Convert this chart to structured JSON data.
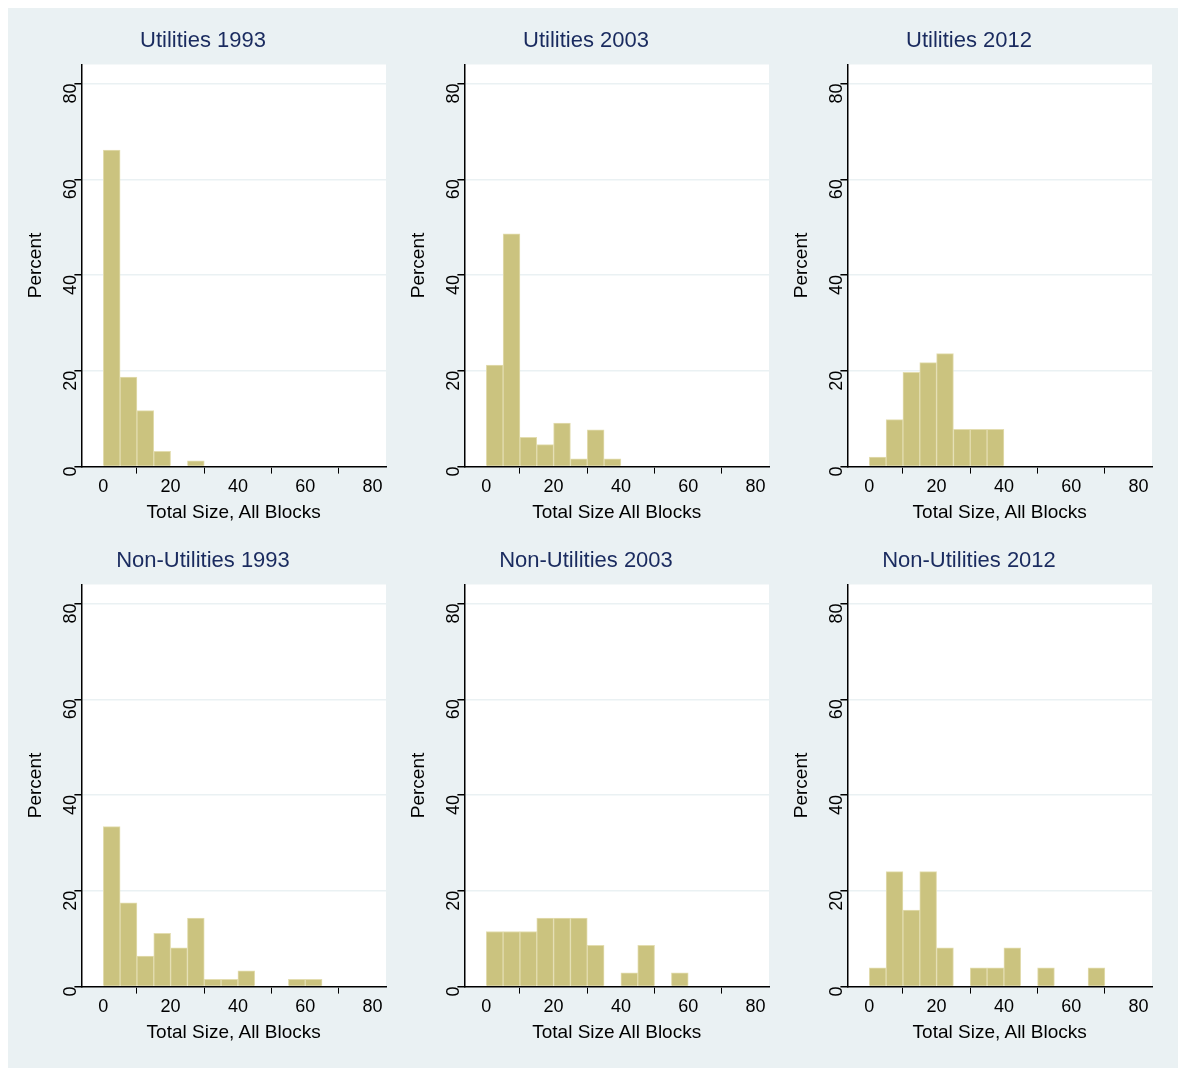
{
  "chart_data": [
    {
      "type": "histogram",
      "title": "Utilities 1993",
      "xlabel": "Total Size, All Blocks",
      "ylabel": "Percent",
      "color": "#cbc37f",
      "bins": [
        0,
        5,
        10,
        15,
        20,
        25,
        30
      ],
      "values": [
        66.1,
        18.7,
        11.7,
        3.2,
        0,
        1.2
      ],
      "xlim": [
        -6.5,
        84
      ],
      "xticks": [
        0,
        20,
        40,
        60,
        80
      ],
      "ylim": [
        0,
        84
      ],
      "yticks": [
        0,
        20,
        40,
        60,
        80
      ],
      "grid": "y"
    },
    {
      "type": "histogram",
      "title": "Utilities 2003",
      "xlabel": "Total Size All Blocks",
      "ylabel": "Percent",
      "color": "#cbc37f",
      "bins": [
        0,
        5,
        10,
        15,
        20,
        25,
        30,
        35,
        40
      ],
      "values": [
        21.2,
        48.6,
        6.1,
        4.6,
        9.1,
        1.6,
        7.7,
        1.6
      ],
      "xlim": [
        -6.5,
        84
      ],
      "xticks": [
        0,
        20,
        40,
        60,
        80
      ],
      "ylim": [
        0,
        84
      ],
      "yticks": [
        0,
        20,
        40,
        60,
        80
      ],
      "grid": "y"
    },
    {
      "type": "histogram",
      "title": "Utilities 2012",
      "xlabel": "Total Size, All Blocks",
      "ylabel": "Percent",
      "color": "#cbc37f",
      "bins": [
        0,
        5,
        10,
        15,
        20,
        25,
        30,
        35,
        40
      ],
      "values": [
        2.0,
        9.8,
        19.7,
        21.7,
        23.6,
        7.8,
        7.8,
        7.8
      ],
      "xlim": [
        -6.5,
        84
      ],
      "xticks": [
        0,
        20,
        40,
        60,
        80
      ],
      "ylim": [
        0,
        84
      ],
      "yticks": [
        0,
        20,
        40,
        60,
        80
      ],
      "grid": "y"
    },
    {
      "type": "histogram",
      "title": "Non-Utilities 1993",
      "xlabel": "Total Size, All Blocks",
      "ylabel": "Percent",
      "color": "#cbc37f",
      "bins": [
        0,
        5,
        10,
        15,
        20,
        25,
        30,
        35,
        40,
        45,
        50,
        55,
        60,
        65
      ],
      "values": [
        33.4,
        17.5,
        6.4,
        11.1,
        8.1,
        14.3,
        1.5,
        1.5,
        3.3,
        0,
        0,
        1.5,
        1.5
      ],
      "xlim": [
        -6.5,
        84
      ],
      "xticks": [
        0,
        20,
        40,
        60,
        80
      ],
      "ylim": [
        0,
        84
      ],
      "yticks": [
        0,
        20,
        40,
        60,
        80
      ],
      "grid": "y"
    },
    {
      "type": "histogram",
      "title": "Non-Utilities 2003",
      "xlabel": "Total Size All Blocks",
      "ylabel": "Percent",
      "color": "#cbc37f",
      "bins": [
        0,
        5,
        10,
        15,
        20,
        25,
        30,
        35,
        40,
        45,
        50,
        55,
        60
      ],
      "values": [
        11.5,
        11.5,
        11.5,
        14.3,
        14.3,
        14.3,
        8.6,
        0,
        2.9,
        8.6,
        0,
        2.9
      ],
      "xlim": [
        -6.5,
        84
      ],
      "xticks": [
        0,
        20,
        40,
        60,
        80
      ],
      "ylim": [
        0,
        84
      ],
      "yticks": [
        0,
        20,
        40,
        60,
        80
      ],
      "grid": "y"
    },
    {
      "type": "histogram",
      "title": "Non-Utilities 2012",
      "xlabel": "Total Size, All Blocks",
      "ylabel": "Percent",
      "color": "#cbc37f",
      "bins": [
        0,
        5,
        10,
        15,
        20,
        25,
        30,
        35,
        40,
        45,
        50,
        55,
        60,
        65,
        70
      ],
      "values": [
        3.9,
        24.0,
        16.0,
        24.0,
        8.1,
        0,
        3.9,
        3.9,
        8.1,
        0,
        3.9,
        0,
        0,
        3.9
      ],
      "xlim": [
        -6.5,
        84
      ],
      "xticks": [
        0,
        20,
        40,
        60,
        80
      ],
      "ylim": [
        0,
        84
      ],
      "yticks": [
        0,
        20,
        40,
        60,
        80
      ],
      "grid": "y"
    }
  ]
}
